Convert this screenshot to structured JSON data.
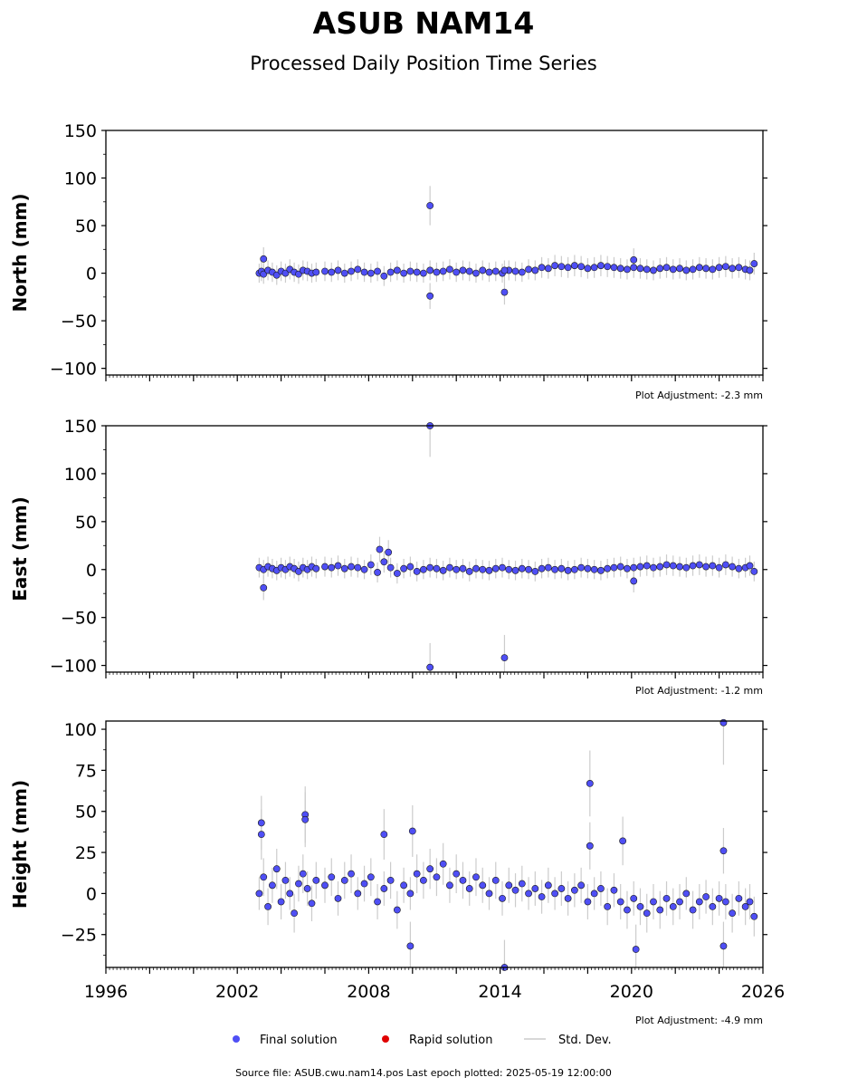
{
  "header": {
    "title": "ASUB NAM14",
    "subtitle": "Processed Daily Position Time Series"
  },
  "footer": {
    "source": "Source file: ASUB.cwu.nam14.pos  Last epoch plotted: 2025-05-19 12:00:00"
  },
  "legend": [
    {
      "label": "Final solution",
      "color": "#4f4ff5"
    },
    {
      "label": "Rapid solution",
      "color": "#e00000"
    },
    {
      "label": "Std. Dev.",
      "color": "#cccccc"
    }
  ],
  "chart_data": [
    {
      "type": "scatter",
      "ylabel": "North (mm)",
      "adjustment": "Plot Adjustment: -2.3 mm",
      "xlim": [
        1996,
        2026
      ],
      "ylim": [
        -107,
        150
      ],
      "yticks": [
        150,
        100,
        50,
        0,
        -50,
        -100
      ],
      "ytick_labels": [
        "150",
        "100",
        "50",
        "0",
        "−50",
        "−100"
      ],
      "x_labels_shown": false,
      "series": [
        {
          "name": "Final solution",
          "color": "#4f4ff5",
          "x": [
            2003.0,
            2003.1,
            2003.2,
            2003.4,
            2003.6,
            2003.8,
            2004.0,
            2004.2,
            2004.4,
            2004.6,
            2004.8,
            2005.0,
            2005.2,
            2005.4,
            2005.6,
            2006.0,
            2006.3,
            2006.6,
            2006.9,
            2007.2,
            2007.5,
            2007.8,
            2008.1,
            2008.4,
            2008.7,
            2009.0,
            2009.3,
            2009.6,
            2009.9,
            2010.2,
            2010.5,
            2010.8,
            2011.1,
            2011.4,
            2011.7,
            2012.0,
            2012.3,
            2012.6,
            2012.9,
            2013.2,
            2013.5,
            2013.8,
            2014.1,
            2014.4,
            2014.7,
            2015.0,
            2015.3,
            2015.6,
            2015.9,
            2016.2,
            2016.5,
            2016.8,
            2017.1,
            2017.4,
            2017.7,
            2018.0,
            2018.3,
            2018.6,
            2018.9,
            2019.2,
            2019.5,
            2019.8,
            2020.1,
            2020.4,
            2020.7,
            2021.0,
            2021.3,
            2021.6,
            2021.9,
            2022.2,
            2022.5,
            2022.8,
            2023.1,
            2023.4,
            2023.7,
            2024.0,
            2024.3,
            2024.6,
            2024.9,
            2025.2,
            2025.4,
            2003.2,
            2010.8,
            2010.8,
            2014.2,
            2014.2,
            2020.1,
            2025.6
          ],
          "y": [
            0,
            2,
            -1,
            3,
            1,
            -2,
            2,
            0,
            4,
            1,
            -1,
            3,
            2,
            0,
            1,
            2,
            1,
            3,
            0,
            2,
            4,
            1,
            0,
            2,
            -3,
            1,
            3,
            0,
            2,
            1,
            0,
            3,
            1,
            2,
            4,
            1,
            3,
            2,
            0,
            3,
            1,
            2,
            0,
            3,
            2,
            1,
            4,
            3,
            6,
            5,
            8,
            7,
            6,
            8,
            7,
            5,
            6,
            8,
            7,
            6,
            5,
            4,
            6,
            5,
            4,
            3,
            5,
            6,
            4,
            5,
            3,
            4,
            6,
            5,
            4,
            6,
            7,
            5,
            6,
            4,
            3,
            15,
            71,
            -24,
            -20,
            3,
            14,
            10
          ]
        }
      ]
    },
    {
      "type": "scatter",
      "ylabel": "East (mm)",
      "adjustment": "Plot Adjustment: -1.2 mm",
      "xlim": [
        1996,
        2026
      ],
      "ylim": [
        -107,
        150
      ],
      "yticks": [
        150,
        100,
        50,
        0,
        -50,
        -100
      ],
      "ytick_labels": [
        "150",
        "100",
        "50",
        "0",
        "−50",
        "−100"
      ],
      "x_labels_shown": false,
      "series": [
        {
          "name": "Final solution",
          "color": "#4f4ff5",
          "x": [
            2003.0,
            2003.2,
            2003.4,
            2003.6,
            2003.8,
            2004.0,
            2004.2,
            2004.4,
            2004.6,
            2004.8,
            2005.0,
            2005.2,
            2005.4,
            2005.6,
            2006.0,
            2006.3,
            2006.6,
            2006.9,
            2007.2,
            2007.5,
            2007.8,
            2008.1,
            2008.4,
            2008.7,
            2009.0,
            2009.3,
            2009.6,
            2009.9,
            2010.2,
            2010.5,
            2010.8,
            2011.1,
            2011.4,
            2011.7,
            2012.0,
            2012.3,
            2012.6,
            2012.9,
            2013.2,
            2013.5,
            2013.8,
            2014.1,
            2014.4,
            2014.7,
            2015.0,
            2015.3,
            2015.6,
            2015.9,
            2016.2,
            2016.5,
            2016.8,
            2017.1,
            2017.4,
            2017.7,
            2018.0,
            2018.3,
            2018.6,
            2018.9,
            2019.2,
            2019.5,
            2019.8,
            2020.1,
            2020.4,
            2020.7,
            2021.0,
            2021.3,
            2021.6,
            2021.9,
            2022.2,
            2022.5,
            2022.8,
            2023.1,
            2023.4,
            2023.7,
            2024.0,
            2024.3,
            2024.6,
            2024.9,
            2025.2,
            2025.4,
            2003.2,
            2008.5,
            2008.9,
            2010.8,
            2010.8,
            2014.2,
            2020.1,
            2025.6
          ],
          "y": [
            2,
            0,
            3,
            1,
            -1,
            2,
            0,
            3,
            1,
            -2,
            2,
            0,
            3,
            1,
            3,
            2,
            4,
            1,
            3,
            2,
            0,
            5,
            -3,
            8,
            2,
            -4,
            1,
            3,
            -2,
            0,
            2,
            1,
            -1,
            2,
            0,
            1,
            -2,
            1,
            0,
            -1,
            1,
            2,
            0,
            -1,
            1,
            0,
            -2,
            1,
            2,
            0,
            1,
            -1,
            0,
            2,
            1,
            0,
            -1,
            1,
            2,
            3,
            1,
            2,
            3,
            4,
            2,
            3,
            5,
            4,
            3,
            2,
            4,
            5,
            3,
            4,
            2,
            5,
            3,
            1,
            2,
            4,
            -19,
            21,
            18,
            150,
            -102,
            -92,
            -12,
            -2
          ]
        }
      ]
    },
    {
      "type": "scatter",
      "ylabel": "Height (mm)",
      "adjustment": "Plot Adjustment: -4.9 mm",
      "xlim": [
        1996,
        2026
      ],
      "ylim": [
        -45,
        105
      ],
      "yticks": [
        100,
        75,
        50,
        25,
        0,
        -25
      ],
      "ytick_labels": [
        "100",
        "75",
        "50",
        "25",
        "0",
        "−25"
      ],
      "xticks": [
        1996,
        2002,
        2008,
        2014,
        2020,
        2026
      ],
      "xtick_labels": [
        "1996",
        "2002",
        "2008",
        "2014",
        "2020",
        "2026"
      ],
      "x_labels_shown": true,
      "series": [
        {
          "name": "Final solution",
          "color": "#4f4ff5",
          "x": [
            2003.0,
            2003.2,
            2003.4,
            2003.6,
            2003.8,
            2004.0,
            2004.2,
            2004.4,
            2004.6,
            2004.8,
            2005.0,
            2005.2,
            2005.4,
            2005.6,
            2006.0,
            2006.3,
            2006.6,
            2006.9,
            2007.2,
            2007.5,
            2007.8,
            2008.1,
            2008.4,
            2008.7,
            2009.0,
            2009.3,
            2009.6,
            2009.9,
            2010.2,
            2010.5,
            2010.8,
            2011.1,
            2011.4,
            2011.7,
            2012.0,
            2012.3,
            2012.6,
            2012.9,
            2013.2,
            2013.5,
            2013.8,
            2014.1,
            2014.4,
            2014.7,
            2015.0,
            2015.3,
            2015.6,
            2015.9,
            2016.2,
            2016.5,
            2016.8,
            2017.1,
            2017.4,
            2017.7,
            2018.0,
            2018.3,
            2018.6,
            2018.9,
            2019.2,
            2019.5,
            2019.8,
            2020.1,
            2020.4,
            2020.7,
            2021.0,
            2021.3,
            2021.6,
            2021.9,
            2022.2,
            2022.5,
            2022.8,
            2023.1,
            2023.4,
            2023.7,
            2024.0,
            2024.3,
            2024.6,
            2024.9,
            2025.2,
            2025.4,
            2003.1,
            2003.1,
            2005.1,
            2005.1,
            2008.7,
            2010.0,
            2009.9,
            2018.1,
            2018.1,
            2019.6,
            2024.2,
            2024.2,
            2024.2,
            2014.2,
            2020.2,
            2025.6
          ],
          "y": [
            0,
            10,
            -8,
            5,
            15,
            -5,
            8,
            0,
            -12,
            6,
            12,
            3,
            -6,
            8,
            5,
            10,
            -3,
            8,
            12,
            0,
            6,
            10,
            -5,
            3,
            8,
            -10,
            5,
            0,
            12,
            8,
            15,
            10,
            18,
            5,
            12,
            8,
            3,
            10,
            5,
            0,
            8,
            -3,
            5,
            2,
            6,
            0,
            3,
            -2,
            5,
            0,
            3,
            -3,
            2,
            5,
            -5,
            0,
            3,
            -8,
            2,
            -5,
            -10,
            -3,
            -8,
            -12,
            -5,
            -10,
            -3,
            -8,
            -5,
            0,
            -10,
            -5,
            -2,
            -8,
            -3,
            -5,
            -12,
            -3,
            -8,
            -5,
            43,
            36,
            48,
            45,
            36,
            38,
            -32,
            67,
            29,
            32,
            104,
            26,
            -32,
            -45,
            -34,
            -14
          ]
        }
      ]
    }
  ]
}
